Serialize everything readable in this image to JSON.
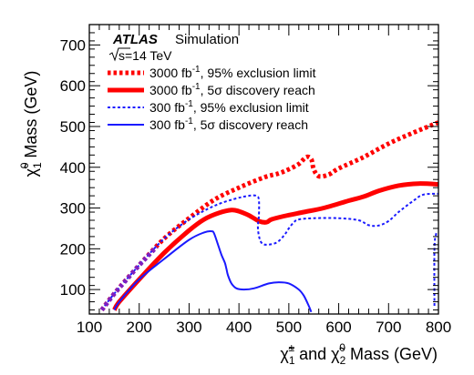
{
  "chart_data": {
    "type": "line",
    "experiment": "ATLAS",
    "experiment_note": "Simulation",
    "energy_label": "s=14 TeV",
    "xlabel": "χ̃₁± and χ̃₂⁰ Mass (GeV)",
    "ylabel": "χ̃₁⁰ Mass (GeV)",
    "xlim": [
      100,
      800
    ],
    "ylim": [
      40,
      750
    ],
    "xticks": [
      100,
      200,
      300,
      400,
      500,
      600,
      700,
      800
    ],
    "yticks": [
      100,
      200,
      300,
      400,
      500,
      600,
      700
    ],
    "grid": false,
    "legend_position": "top-left",
    "colors": {
      "red": "#ff0000",
      "blue": "#1a1aff",
      "purple": "#7f1fbf"
    },
    "series": [
      {
        "name": "3000 fb⁻¹, 95% exclusion limit",
        "color": "#ff0000",
        "style": "dotted-thick",
        "points": [
          [
            125,
            50
          ],
          [
            150,
            90
          ],
          [
            200,
            160
          ],
          [
            250,
            225
          ],
          [
            300,
            275
          ],
          [
            350,
            320
          ],
          [
            400,
            350
          ],
          [
            450,
            375
          ],
          [
            480,
            385
          ],
          [
            500,
            395
          ],
          [
            520,
            408
          ],
          [
            535,
            425
          ],
          [
            545,
            420
          ],
          [
            550,
            395
          ],
          [
            560,
            378
          ],
          [
            580,
            382
          ],
          [
            600,
            397
          ],
          [
            650,
            425
          ],
          [
            700,
            458
          ],
          [
            750,
            485
          ],
          [
            790,
            505
          ],
          [
            800,
            510
          ]
        ]
      },
      {
        "name": "3000 fb⁻¹, 5σ discovery reach",
        "color": "#ff0000",
        "style": "solid-thick",
        "points": [
          [
            150,
            50
          ],
          [
            160,
            70
          ],
          [
            200,
            125
          ],
          [
            250,
            190
          ],
          [
            300,
            245
          ],
          [
            330,
            272
          ],
          [
            360,
            288
          ],
          [
            385,
            295
          ],
          [
            400,
            292
          ],
          [
            420,
            282
          ],
          [
            440,
            268
          ],
          [
            455,
            265
          ],
          [
            465,
            272
          ],
          [
            490,
            280
          ],
          [
            530,
            290
          ],
          [
            570,
            300
          ],
          [
            620,
            318
          ],
          [
            650,
            328
          ],
          [
            680,
            342
          ],
          [
            720,
            355
          ],
          [
            760,
            360
          ],
          [
            800,
            358
          ]
        ]
      },
      {
        "name": "300 fb⁻¹, 95% exclusion limit",
        "color": "#1a1aff",
        "style": "dotted",
        "points": [
          [
            125,
            50
          ],
          [
            150,
            90
          ],
          [
            200,
            160
          ],
          [
            250,
            225
          ],
          [
            300,
            272
          ],
          [
            350,
            305
          ],
          [
            390,
            322
          ],
          [
            420,
            330
          ],
          [
            435,
            330
          ],
          [
            440,
            320
          ],
          [
            440,
            280
          ],
          [
            438,
            255
          ],
          [
            440,
            232
          ],
          [
            445,
            215
          ],
          [
            455,
            210
          ],
          [
            475,
            215
          ],
          [
            490,
            232
          ],
          [
            500,
            250
          ],
          [
            510,
            265
          ],
          [
            520,
            272
          ],
          [
            550,
            275
          ],
          [
            600,
            275
          ],
          [
            640,
            270
          ],
          [
            660,
            258
          ],
          [
            680,
            257
          ],
          [
            700,
            268
          ],
          [
            720,
            290
          ],
          [
            750,
            318
          ],
          [
            770,
            333
          ],
          [
            800,
            335
          ]
        ]
      },
      {
        "name": "",
        "color": "#1a1aff",
        "style": "dotted",
        "points": [
          [
            792,
            60
          ],
          [
            792,
            200
          ],
          [
            795,
            235
          ],
          [
            798,
            240
          ]
        ]
      },
      {
        "name": "300 fb⁻¹, 5σ discovery reach",
        "color": "#1a1aff",
        "style": "solid",
        "points": [
          [
            150,
            50
          ],
          [
            160,
            70
          ],
          [
            200,
            125
          ],
          [
            250,
            175
          ],
          [
            300,
            222
          ],
          [
            330,
            240
          ],
          [
            345,
            243
          ],
          [
            350,
            238
          ],
          [
            358,
            210
          ],
          [
            365,
            185
          ],
          [
            372,
            165
          ],
          [
            375,
            150
          ],
          [
            378,
            135
          ],
          [
            385,
            115
          ],
          [
            395,
            103
          ],
          [
            410,
            100
          ],
          [
            430,
            103
          ],
          [
            460,
            115
          ],
          [
            480,
            118
          ],
          [
            500,
            115
          ],
          [
            520,
            100
          ],
          [
            530,
            85
          ],
          [
            540,
            60
          ],
          [
            545,
            45
          ]
        ]
      }
    ]
  },
  "legend": {
    "items": [
      {
        "label": "3000 fb",
        "sup": "-1",
        "rest": ", 95% exclusion limit"
      },
      {
        "label": "3000 fb",
        "sup": "-1",
        "rest": ", 5σ discovery reach"
      },
      {
        "label": "300 fb",
        "sup": "-1",
        "rest": ", 95% exclusion limit"
      },
      {
        "label": "300 fb",
        "sup": "-1",
        "rest": ", 5σ discovery reach"
      }
    ]
  }
}
